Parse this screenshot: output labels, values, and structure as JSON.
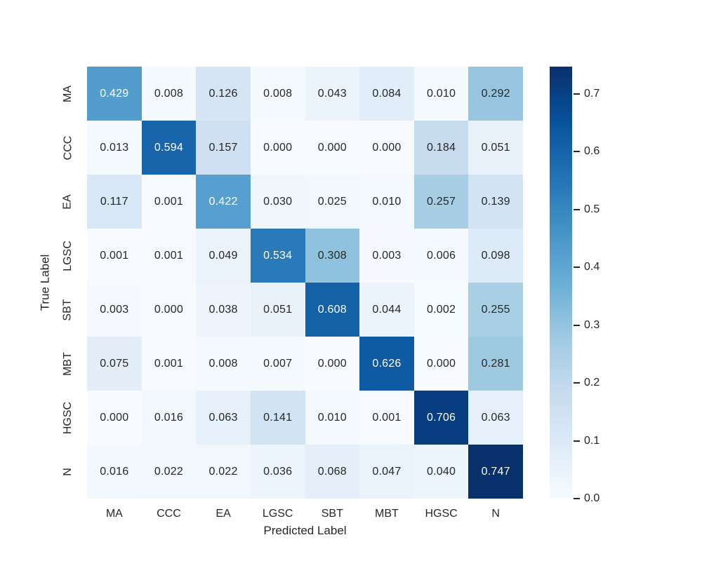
{
  "chart_data": {
    "type": "heatmap",
    "title": "",
    "xlabel": "Predicted Label",
    "ylabel": "True Label",
    "x_categories": [
      "MA",
      "CCC",
      "EA",
      "LGSC",
      "SBT",
      "MBT",
      "HGSC",
      "N"
    ],
    "y_categories": [
      "MA",
      "CCC",
      "EA",
      "LGSC",
      "SBT",
      "MBT",
      "HGSC",
      "N"
    ],
    "matrix": [
      [
        0.429,
        0.008,
        0.126,
        0.008,
        0.043,
        0.084,
        0.01,
        0.292
      ],
      [
        0.013,
        0.594,
        0.157,
        0.0,
        0.0,
        0.0,
        0.184,
        0.051
      ],
      [
        0.117,
        0.001,
        0.422,
        0.03,
        0.025,
        0.01,
        0.257,
        0.139
      ],
      [
        0.001,
        0.001,
        0.049,
        0.534,
        0.308,
        0.003,
        0.006,
        0.098
      ],
      [
        0.003,
        0.0,
        0.038,
        0.051,
        0.608,
        0.044,
        0.002,
        0.255
      ],
      [
        0.075,
        0.001,
        0.008,
        0.007,
        0.0,
        0.626,
        0.0,
        0.281
      ],
      [
        0.0,
        0.016,
        0.063,
        0.141,
        0.01,
        0.001,
        0.706,
        0.063
      ],
      [
        0.016,
        0.022,
        0.022,
        0.036,
        0.068,
        0.047,
        0.04,
        0.747
      ]
    ],
    "value_decimals": 3,
    "vmin": 0.0,
    "vmax": 0.747,
    "colormap": "Blues",
    "legend_position": "right-colorbar",
    "grid": false,
    "colorbar_ticks": [
      "0.0",
      "0.1",
      "0.2",
      "0.3",
      "0.4",
      "0.5",
      "0.6",
      "0.7"
    ],
    "colors": {
      "colormap_stops": [
        "#f7fbff",
        "#deebf7",
        "#c6dbef",
        "#9ecae1",
        "#6baed6",
        "#4292c6",
        "#2171b5",
        "#08519c",
        "#08306b"
      ],
      "annotation_dark": "#262626",
      "annotation_light": "#ffffff",
      "axis_text": "#262626",
      "background": "#ffffff"
    }
  }
}
